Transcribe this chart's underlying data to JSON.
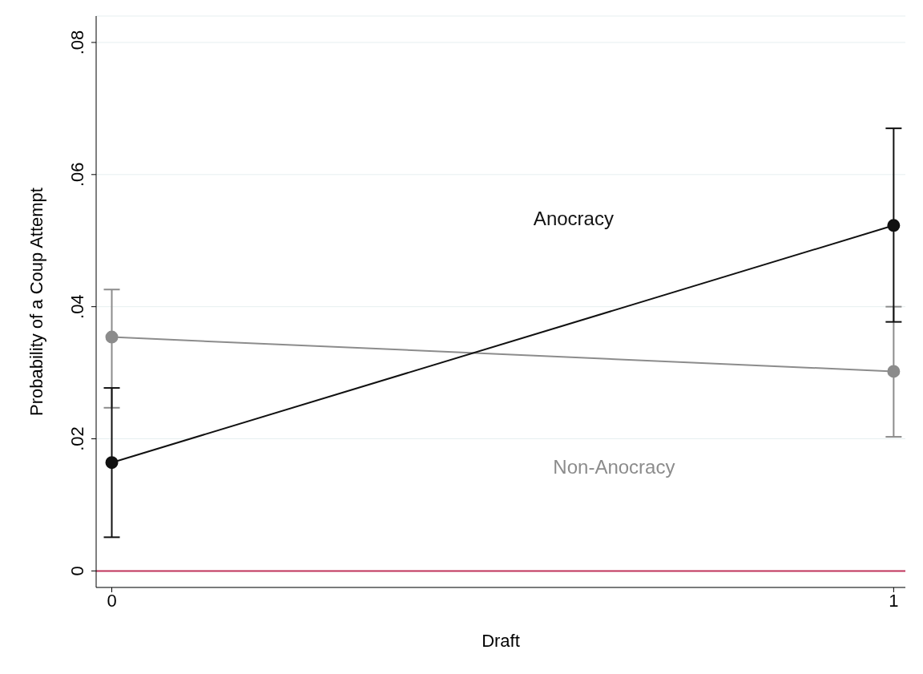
{
  "chart_data": {
    "type": "line",
    "xlabel": "Draft",
    "ylabel": "Probability of a Coup Attempt",
    "xlim": [
      -0.02,
      1.015
    ],
    "xticks": [
      0,
      1
    ],
    "ylim": [
      -0.0025,
      0.084
    ],
    "yticks": [
      {
        "value": 0,
        "label": "0"
      },
      {
        "value": 0.02,
        "label": ".02"
      },
      {
        "value": 0.04,
        "label": ".04"
      },
      {
        "value": 0.06,
        "label": ".06"
      },
      {
        "value": 0.08,
        "label": ".08"
      }
    ],
    "x": [
      0,
      1
    ],
    "series": [
      {
        "name": "Non-Anocracy",
        "color": "#8c8c8c",
        "values": [
          0.0354,
          0.0302
        ],
        "errors": [
          [
            0.0247,
            0.0426
          ],
          [
            0.0203,
            0.04
          ]
        ]
      },
      {
        "name": "Anocracy",
        "color": "#111111",
        "values": [
          0.0164,
          0.0523
        ],
        "errors": [
          [
            0.0051,
            0.0277
          ],
          [
            0.0377,
            0.067
          ]
        ]
      }
    ],
    "ref_lines": [
      {
        "axis": "y",
        "value": 0,
        "color": "#c0325a"
      }
    ],
    "grid": "y",
    "marker": "circle",
    "line_style": "solid",
    "legend": false
  }
}
